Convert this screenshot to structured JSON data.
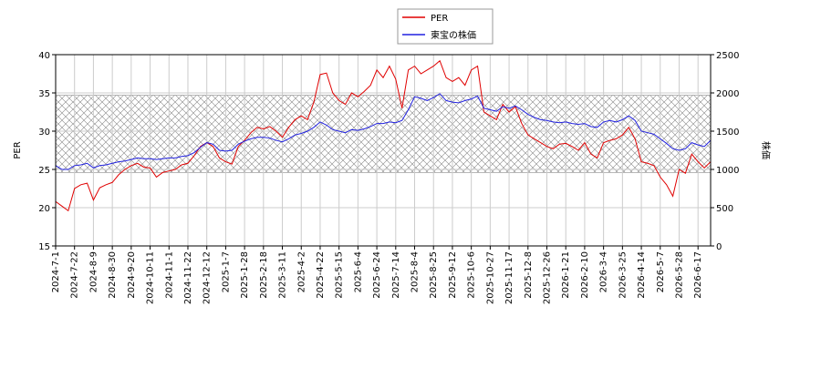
{
  "chart_data": {
    "type": "line",
    "categories": [
      "2024-7-1",
      null,
      null,
      "2024-7-22",
      null,
      null,
      "2024-8-9",
      null,
      null,
      "2024-8-30",
      null,
      null,
      "2024-9-20",
      null,
      null,
      "2024-10-11",
      null,
      null,
      "2024-11-1",
      null,
      null,
      "2024-11-22",
      null,
      null,
      "2024-12-12",
      null,
      null,
      "2025-1-7",
      null,
      null,
      "2025-1-28",
      null,
      null,
      "2025-2-18",
      null,
      null,
      "2025-3-11",
      null,
      null,
      "2025-4-2",
      null,
      null,
      "2025-4-22",
      null,
      null,
      "2025-5-15",
      null,
      null,
      "2025-6-4",
      null,
      null,
      "2025-6-24",
      null,
      null,
      "2025-7-14",
      null,
      null,
      "2025-8-4",
      null,
      null,
      "2025-8-25",
      null,
      null,
      "2025-9-12",
      null,
      null,
      "2025-10-6",
      null,
      null,
      "2025-10-27",
      null,
      null,
      "2025-11-17",
      null,
      null,
      "2025-12-8",
      null,
      null,
      "2025-12-26",
      null,
      null,
      "2026-1-21",
      null,
      null,
      "2026-2-10",
      null,
      null,
      "2026-3-4",
      null,
      null,
      "2026-3-25",
      null,
      null,
      "2026-4-14",
      null,
      null,
      "2026-5-7",
      null,
      null,
      "2026-5-28",
      null,
      null,
      "2026-6-17",
      null,
      null
    ],
    "series": [
      {
        "name": "PER",
        "color": "#e00000",
        "axis": "y",
        "values": [
          20.8,
          20.2,
          19.6,
          22.5,
          23.0,
          23.2,
          21.0,
          22.6,
          23.0,
          23.3,
          24.3,
          25.0,
          25.5,
          25.8,
          25.3,
          25.2,
          24.0,
          24.6,
          24.8,
          25.0,
          25.6,
          25.8,
          26.8,
          28.0,
          28.5,
          28.0,
          26.5,
          26.0,
          25.7,
          28.0,
          28.8,
          29.8,
          30.5,
          30.3,
          30.6,
          30.0,
          29.2,
          30.5,
          31.5,
          32.0,
          31.5,
          33.8,
          37.4,
          37.6,
          35.0,
          34.0,
          33.5,
          35.0,
          34.5,
          35.2,
          36.0,
          38.0,
          37.0,
          38.5,
          36.8,
          33.0,
          38.0,
          38.5,
          37.5,
          38.0,
          38.5,
          39.2,
          37.0,
          36.5,
          37.0,
          36.0,
          38.0,
          38.5,
          32.5,
          32.0,
          31.5,
          33.5,
          32.5,
          33.2,
          31.0,
          29.5,
          29.0,
          28.5,
          28.0,
          27.7,
          28.3,
          28.4,
          28.0,
          27.5,
          28.5,
          27.0,
          26.5,
          28.5,
          28.8,
          29.0,
          29.5,
          30.5,
          29.0,
          26.0,
          25.8,
          25.5,
          24.0,
          23.0,
          21.5,
          25.0,
          24.5,
          27.0,
          26.0,
          25.2,
          26.0
        ]
      },
      {
        "name": "東宝の株価",
        "color": "#2020e0",
        "axis": "y2",
        "values": [
          1050,
          1000,
          1000,
          1050,
          1060,
          1080,
          1020,
          1050,
          1060,
          1080,
          1100,
          1110,
          1130,
          1150,
          1140,
          1140,
          1130,
          1140,
          1150,
          1150,
          1170,
          1180,
          1220,
          1290,
          1350,
          1330,
          1250,
          1240,
          1250,
          1330,
          1370,
          1400,
          1420,
          1420,
          1410,
          1380,
          1360,
          1400,
          1450,
          1470,
          1500,
          1550,
          1620,
          1580,
          1520,
          1500,
          1480,
          1520,
          1510,
          1530,
          1560,
          1600,
          1600,
          1620,
          1610,
          1640,
          1780,
          1950,
          1930,
          1900,
          1940,
          1990,
          1900,
          1880,
          1870,
          1900,
          1920,
          1960,
          1800,
          1780,
          1760,
          1820,
          1800,
          1830,
          1780,
          1720,
          1680,
          1650,
          1640,
          1620,
          1610,
          1620,
          1600,
          1590,
          1600,
          1560,
          1550,
          1620,
          1640,
          1620,
          1650,
          1700,
          1640,
          1500,
          1480,
          1460,
          1400,
          1340,
          1270,
          1250,
          1270,
          1350,
          1320,
          1300,
          1380
        ]
      }
    ],
    "ylabel": "PER",
    "y2label": "株価",
    "ylim": [
      15,
      40
    ],
    "yticks": [
      15,
      20,
      25,
      30,
      35,
      40
    ],
    "y2lim": [
      0,
      2500
    ],
    "y2ticks": [
      0,
      500,
      1000,
      1500,
      2000,
      2500
    ],
    "band": [
      24.6,
      34.7
    ],
    "grid": true,
    "legend": "top"
  }
}
